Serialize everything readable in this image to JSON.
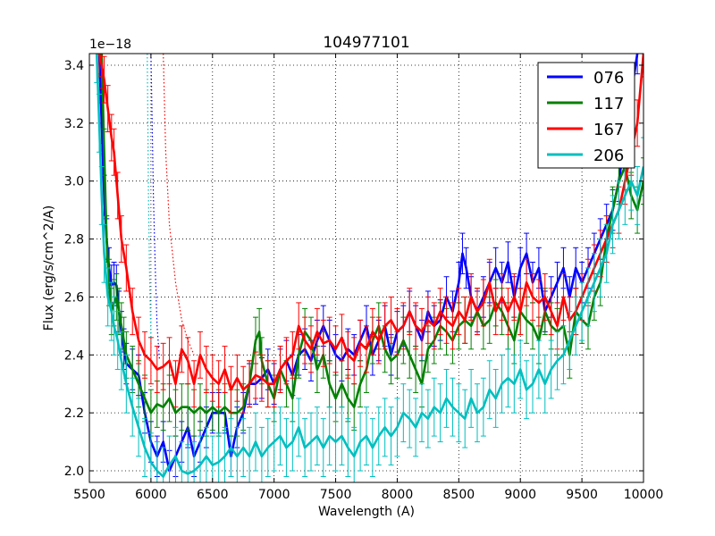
{
  "chart_data": {
    "type": "line",
    "title": "104977101",
    "xlabel": "Wavelength (A)",
    "ylabel": "Flux (erg/s/cm^2/A)",
    "y_offset_label": "1e−18",
    "xlim": [
      5500,
      10000
    ],
    "ylim": [
      1.96,
      3.44
    ],
    "grid": true,
    "legend_position": "top-right",
    "x_ticks": [
      {
        "value": 5500,
        "label": "5500"
      },
      {
        "value": 6000,
        "label": "6000"
      },
      {
        "value": 6500,
        "label": "6500"
      },
      {
        "value": 7000,
        "label": "7000"
      },
      {
        "value": 7500,
        "label": "7500"
      },
      {
        "value": 8000,
        "label": "8000"
      },
      {
        "value": 8500,
        "label": "8500"
      },
      {
        "value": 9000,
        "label": "9000"
      },
      {
        "value": 9500,
        "label": "9500"
      },
      {
        "value": 10000,
        "label": "10000"
      }
    ],
    "y_ticks": [
      {
        "value": 2.0,
        "label": "2.0"
      },
      {
        "value": 2.2,
        "label": "2.2"
      },
      {
        "value": 2.4,
        "label": "2.4"
      },
      {
        "value": 2.6,
        "label": "2.6"
      },
      {
        "value": 2.8,
        "label": "2.8"
      },
      {
        "value": 3.0,
        "label": "3.0"
      },
      {
        "value": 3.2,
        "label": "3.2"
      },
      {
        "value": 3.4,
        "label": "3.4"
      }
    ],
    "series": [
      {
        "name": "076",
        "color": "#0000ff",
        "dotted_x": [
          6000,
          6010,
          6020,
          6035,
          6050,
          6070
        ],
        "dotted_y": [
          3.44,
          3.2,
          2.95,
          2.7,
          2.5,
          2.38
        ],
        "x": [
          5580,
          5600,
          5620,
          5640,
          5660,
          5680,
          5700,
          5720,
          5740,
          5760,
          5780,
          5800,
          5850,
          5900,
          5950,
          6000,
          6050,
          6100,
          6150,
          6200,
          6250,
          6300,
          6350,
          6400,
          6450,
          6500,
          6550,
          6600,
          6650,
          6700,
          6750,
          6800,
          6850,
          6900,
          6950,
          7000,
          7050,
          7100,
          7150,
          7200,
          7250,
          7300,
          7350,
          7400,
          7450,
          7500,
          7550,
          7600,
          7650,
          7700,
          7750,
          7800,
          7850,
          7900,
          7950,
          8000,
          8050,
          8100,
          8150,
          8200,
          8250,
          8300,
          8350,
          8400,
          8450,
          8500,
          8530,
          8560,
          8600,
          8650,
          8700,
          8750,
          8800,
          8850,
          8900,
          8950,
          9000,
          9050,
          9100,
          9150,
          9200,
          9250,
          9300,
          9350,
          9400,
          9450,
          9500,
          9550,
          9600,
          9650,
          9700,
          9750,
          9800,
          9850,
          9900,
          9950
        ],
        "y": [
          3.44,
          3.2,
          2.95,
          2.8,
          2.7,
          2.64,
          2.65,
          2.64,
          2.55,
          2.48,
          2.42,
          2.37,
          2.35,
          2.33,
          2.2,
          2.1,
          2.05,
          2.1,
          2.0,
          2.05,
          2.1,
          2.15,
          2.05,
          2.1,
          2.15,
          2.2,
          2.2,
          2.2,
          2.05,
          2.15,
          2.2,
          2.3,
          2.3,
          2.32,
          2.35,
          2.3,
          2.35,
          2.38,
          2.33,
          2.4,
          2.42,
          2.38,
          2.45,
          2.5,
          2.45,
          2.4,
          2.38,
          2.42,
          2.4,
          2.45,
          2.5,
          2.4,
          2.45,
          2.5,
          2.4,
          2.48,
          2.5,
          2.55,
          2.5,
          2.45,
          2.55,
          2.5,
          2.52,
          2.6,
          2.55,
          2.65,
          2.75,
          2.7,
          2.6,
          2.55,
          2.6,
          2.65,
          2.7,
          2.65,
          2.72,
          2.6,
          2.7,
          2.75,
          2.65,
          2.7,
          2.55,
          2.6,
          2.65,
          2.7,
          2.6,
          2.7,
          2.65,
          2.7,
          2.75,
          2.8,
          2.85,
          2.9,
          3.0,
          3.15,
          3.3,
          3.44
        ],
        "err": 0.07
      },
      {
        "name": "117",
        "color": "#008000",
        "x": [
          5600,
          5620,
          5640,
          5660,
          5680,
          5700,
          5720,
          5740,
          5760,
          5780,
          5800,
          5850,
          5900,
          5950,
          6000,
          6050,
          6100,
          6150,
          6200,
          6250,
          6300,
          6350,
          6400,
          6450,
          6500,
          6550,
          6600,
          6650,
          6700,
          6750,
          6800,
          6850,
          6880,
          6900,
          6950,
          7000,
          7050,
          7100,
          7150,
          7200,
          7250,
          7300,
          7350,
          7400,
          7450,
          7500,
          7550,
          7600,
          7650,
          7700,
          7750,
          7800,
          7850,
          7900,
          7950,
          8000,
          8050,
          8100,
          8150,
          8200,
          8250,
          8300,
          8350,
          8400,
          8450,
          8500,
          8550,
          8600,
          8650,
          8700,
          8750,
          8800,
          8850,
          8900,
          8950,
          9000,
          9050,
          9100,
          9150,
          9200,
          9250,
          9300,
          9350,
          9400,
          9450,
          9500,
          9550,
          9600,
          9650,
          9700,
          9750,
          9800,
          9850,
          9900,
          9950,
          10000
        ],
        "y": [
          3.44,
          3.1,
          2.8,
          2.65,
          2.55,
          2.58,
          2.6,
          2.55,
          2.5,
          2.45,
          2.4,
          2.35,
          2.3,
          2.25,
          2.2,
          2.23,
          2.22,
          2.25,
          2.2,
          2.22,
          2.22,
          2.2,
          2.22,
          2.2,
          2.22,
          2.2,
          2.22,
          2.2,
          2.2,
          2.22,
          2.3,
          2.45,
          2.48,
          2.38,
          2.3,
          2.25,
          2.35,
          2.3,
          2.25,
          2.4,
          2.48,
          2.45,
          2.35,
          2.4,
          2.3,
          2.25,
          2.3,
          2.25,
          2.22,
          2.3,
          2.35,
          2.45,
          2.5,
          2.42,
          2.38,
          2.4,
          2.45,
          2.4,
          2.35,
          2.3,
          2.42,
          2.45,
          2.5,
          2.48,
          2.45,
          2.5,
          2.52,
          2.5,
          2.55,
          2.5,
          2.52,
          2.58,
          2.55,
          2.5,
          2.45,
          2.55,
          2.52,
          2.5,
          2.45,
          2.55,
          2.5,
          2.48,
          2.5,
          2.4,
          2.55,
          2.52,
          2.5,
          2.6,
          2.65,
          2.8,
          2.9,
          3.0,
          3.05,
          2.95,
          2.9,
          3.0
        ],
        "err": 0.08
      },
      {
        "name": "167",
        "color": "#ff0000",
        "dotted_x": [
          6100,
          6120,
          6150,
          6200,
          6250,
          6300,
          6350
        ],
        "dotted_y": [
          3.44,
          3.1,
          2.85,
          2.65,
          2.52,
          2.45,
          2.4
        ],
        "x": [
          5580,
          5600,
          5620,
          5650,
          5680,
          5700,
          5730,
          5760,
          5800,
          5850,
          5900,
          5950,
          6000,
          6050,
          6100,
          6150,
          6200,
          6250,
          6300,
          6350,
          6400,
          6450,
          6500,
          6550,
          6600,
          6650,
          6700,
          6750,
          6800,
          6850,
          6900,
          6950,
          7000,
          7050,
          7100,
          7150,
          7200,
          7250,
          7300,
          7350,
          7400,
          7450,
          7500,
          7550,
          7600,
          7650,
          7700,
          7750,
          7800,
          7850,
          7900,
          7950,
          8000,
          8050,
          8100,
          8150,
          8200,
          8250,
          8300,
          8350,
          8400,
          8450,
          8500,
          8550,
          8600,
          8650,
          8700,
          8750,
          8800,
          8850,
          8900,
          8950,
          9000,
          9050,
          9100,
          9150,
          9200,
          9250,
          9300,
          9350,
          9400,
          9450,
          9500,
          9550,
          9600,
          9650,
          9700,
          9750,
          9800,
          9850,
          9900,
          9950,
          10000
        ],
        "y": [
          3.44,
          3.4,
          3.35,
          3.25,
          3.15,
          3.1,
          2.95,
          2.8,
          2.7,
          2.55,
          2.45,
          2.4,
          2.38,
          2.35,
          2.36,
          2.38,
          2.3,
          2.42,
          2.38,
          2.3,
          2.4,
          2.35,
          2.32,
          2.3,
          2.35,
          2.28,
          2.32,
          2.28,
          2.3,
          2.33,
          2.32,
          2.3,
          2.3,
          2.35,
          2.38,
          2.4,
          2.5,
          2.45,
          2.42,
          2.48,
          2.44,
          2.45,
          2.42,
          2.46,
          2.4,
          2.38,
          2.44,
          2.42,
          2.48,
          2.45,
          2.5,
          2.52,
          2.48,
          2.5,
          2.55,
          2.5,
          2.48,
          2.52,
          2.5,
          2.55,
          2.52,
          2.5,
          2.55,
          2.52,
          2.6,
          2.55,
          2.58,
          2.65,
          2.55,
          2.6,
          2.55,
          2.6,
          2.55,
          2.65,
          2.6,
          2.58,
          2.6,
          2.55,
          2.5,
          2.6,
          2.52,
          2.55,
          2.6,
          2.65,
          2.7,
          2.75,
          2.8,
          2.85,
          2.9,
          3.0,
          3.1,
          3.2,
          3.44
        ],
        "err": 0.08
      },
      {
        "name": "206",
        "color": "#00bfbf",
        "dotted_x": [
          5970,
          5975,
          5980,
          5990,
          6000
        ],
        "dotted_y": [
          3.44,
          3.2,
          2.95,
          2.65,
          2.45
        ],
        "x": [
          5560,
          5580,
          5600,
          5620,
          5650,
          5680,
          5700,
          5730,
          5760,
          5800,
          5850,
          5900,
          5950,
          6000,
          6050,
          6100,
          6150,
          6200,
          6250,
          6300,
          6350,
          6400,
          6450,
          6500,
          6550,
          6600,
          6650,
          6700,
          6750,
          6800,
          6850,
          6900,
          6950,
          7000,
          7050,
          7100,
          7150,
          7200,
          7250,
          7300,
          7350,
          7400,
          7450,
          7500,
          7550,
          7600,
          7650,
          7700,
          7750,
          7800,
          7850,
          7900,
          7950,
          8000,
          8050,
          8100,
          8150,
          8200,
          8250,
          8300,
          8350,
          8400,
          8450,
          8500,
          8550,
          8600,
          8650,
          8700,
          8750,
          8800,
          8850,
          8900,
          8950,
          9000,
          9050,
          9100,
          9150,
          9200,
          9250,
          9300,
          9350,
          9400,
          9450,
          9500,
          9550,
          9600,
          9650,
          9700,
          9750,
          9800,
          9850,
          9900,
          9950,
          10000
        ],
        "y": [
          3.44,
          3.2,
          2.95,
          2.75,
          2.6,
          2.55,
          2.5,
          2.45,
          2.38,
          2.3,
          2.22,
          2.15,
          2.08,
          2.03,
          2.0,
          1.98,
          2.02,
          2.05,
          2.0,
          1.99,
          2.0,
          2.02,
          2.05,
          2.02,
          2.03,
          2.05,
          2.08,
          2.05,
          2.08,
          2.05,
          2.1,
          2.05,
          2.08,
          2.1,
          2.12,
          2.08,
          2.1,
          2.15,
          2.08,
          2.1,
          2.12,
          2.08,
          2.12,
          2.1,
          2.12,
          2.08,
          2.05,
          2.1,
          2.12,
          2.08,
          2.12,
          2.15,
          2.12,
          2.15,
          2.2,
          2.18,
          2.15,
          2.2,
          2.18,
          2.22,
          2.2,
          2.25,
          2.22,
          2.2,
          2.18,
          2.25,
          2.2,
          2.22,
          2.28,
          2.25,
          2.3,
          2.32,
          2.3,
          2.35,
          2.28,
          2.3,
          2.35,
          2.3,
          2.35,
          2.38,
          2.4,
          2.45,
          2.5,
          2.55,
          2.6,
          2.65,
          2.7,
          2.75,
          2.85,
          2.9,
          2.95,
          3.0,
          2.95,
          3.05
        ],
        "err": 0.1
      }
    ]
  }
}
